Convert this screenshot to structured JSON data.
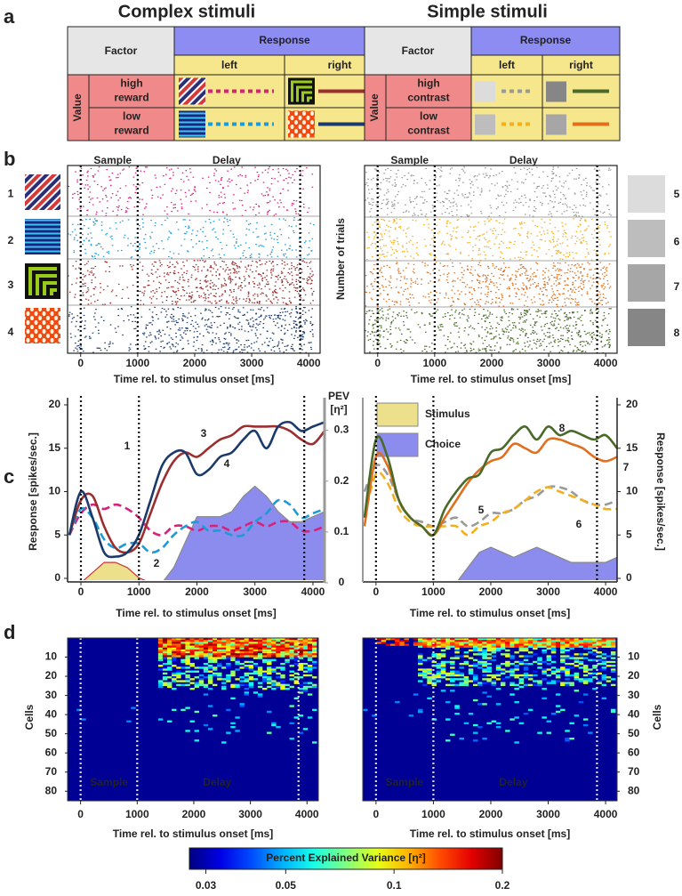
{
  "figure": {
    "panel_labels": [
      "a",
      "b",
      "c",
      "d"
    ],
    "column_titles": [
      "Complex stimuli",
      "Simple stimuli"
    ]
  },
  "tables": [
    {
      "factor": "Factor",
      "response": "Response",
      "left": "left",
      "right": "right",
      "value": "Value",
      "rows": [
        [
          "high",
          "reward"
        ],
        [
          "low",
          "reward"
        ]
      ]
    },
    {
      "factor": "Factor",
      "response": "Response",
      "left": "left",
      "right": "right",
      "value": "Value",
      "rows": [
        [
          "high",
          "contrast"
        ],
        [
          "low",
          "contrast"
        ]
      ]
    }
  ],
  "raster": {
    "sample": "Sample",
    "delay": "Delay",
    "ylabel": "Number of trials",
    "conditions": [
      [
        "1",
        "2",
        "3",
        "4"
      ],
      [
        "5",
        "6",
        "7",
        "8"
      ]
    ]
  },
  "time_axis": {
    "xlim": [
      -230,
      4200
    ],
    "xticks": [
      0,
      1000,
      2000,
      3000,
      4000
    ],
    "xlabel": "Time rel. to stimulus onset [ms]",
    "events": [
      0,
      1000,
      3850
    ]
  },
  "chart_data": [
    {
      "type": "line",
      "ylabel": "Response [spikes/sec.]",
      "y2label": "PEV",
      "y2unit": "[η²]",
      "xlabel": "Time rel. to stimulus onset [ms]",
      "x": [
        -200,
        0,
        200,
        400,
        600,
        800,
        1000,
        1200,
        1400,
        1600,
        1800,
        2000,
        2200,
        2400,
        2600,
        2800,
        3000,
        3200,
        3400,
        3600,
        3800,
        4000,
        4200
      ],
      "xlim": [
        -230,
        4200
      ],
      "xticks": [
        0,
        1000,
        2000,
        3000,
        4000
      ],
      "ylim": [
        0,
        20
      ],
      "yticks": [
        0,
        5,
        10,
        15,
        20
      ],
      "y2lim": [
        0,
        0.35
      ],
      "y2ticks": [
        0,
        0.1,
        0.2,
        0.3
      ],
      "yaxis_side": "left",
      "series": [
        {
          "name": "Stimulus",
          "color": "#ede08c",
          "kind": "area",
          "axis": "y2",
          "values": [
            0,
            0,
            0.02,
            0.04,
            0.04,
            0.03,
            0.01,
            0,
            0,
            0,
            0,
            0,
            0,
            0,
            0,
            0,
            0,
            0,
            0,
            0,
            0,
            0,
            0
          ]
        },
        {
          "name": "Choice",
          "color": "#8c8cee",
          "kind": "area",
          "axis": "y2",
          "values": [
            0,
            0,
            0,
            0,
            0,
            0,
            0,
            0,
            0,
            0.03,
            0.08,
            0.13,
            0.13,
            0.13,
            0.14,
            0.17,
            0.19,
            0.17,
            0.14,
            0.12,
            0.12,
            0.13,
            0.14
          ]
        },
        {
          "name": "1",
          "color": "#d6237a",
          "kind": "line",
          "dashed": true,
          "values": [
            5,
            7.5,
            8.5,
            8,
            8.5,
            8,
            7,
            5.5,
            5,
            6,
            6,
            5.5,
            6,
            6,
            5.5,
            6,
            6.5,
            6,
            6.5,
            6.5,
            5.5,
            5.5,
            6
          ]
        },
        {
          "name": "2",
          "color": "#1e9ad6",
          "kind": "line",
          "dashed": true,
          "values": [
            5,
            8,
            7,
            4.5,
            3.5,
            4,
            4,
            3,
            3.5,
            5,
            6,
            6.5,
            5.5,
            5.5,
            5,
            5,
            6.5,
            7.5,
            9,
            8.5,
            7,
            7.5,
            8
          ]
        },
        {
          "name": "3",
          "color": "#9b2f2f",
          "kind": "line",
          "dashed": false,
          "values": [
            5,
            9,
            9.5,
            6,
            3.5,
            3,
            4,
            7.5,
            11,
            13.5,
            14.5,
            14,
            15,
            16,
            16.5,
            17.5,
            17.5,
            17.5,
            17.5,
            17,
            16,
            15.5,
            17
          ]
        },
        {
          "name": "4",
          "color": "#1b3a6b",
          "kind": "line",
          "dashed": false,
          "values": [
            5,
            10,
            7,
            3,
            2.5,
            3,
            5,
            9,
            13,
            14.5,
            14.5,
            12,
            12.5,
            14,
            14.5,
            16,
            17,
            15,
            17.5,
            18,
            17,
            17.5,
            18
          ]
        }
      ]
    },
    {
      "type": "line",
      "ylabel": "Response [spikes/sec.]",
      "xlabel": "Time rel. to stimulus onset [ms]",
      "x": [
        -200,
        0,
        200,
        400,
        600,
        800,
        1000,
        1200,
        1400,
        1600,
        1800,
        2000,
        2200,
        2400,
        2600,
        2800,
        3000,
        3200,
        3400,
        3600,
        3800,
        4000,
        4200
      ],
      "xlim": [
        -230,
        4200
      ],
      "xticks": [
        0,
        1000,
        2000,
        3000,
        4000
      ],
      "ylim": [
        0,
        20
      ],
      "yticks": [
        0,
        5,
        10,
        15,
        20
      ],
      "y2lim": [
        0,
        0.35
      ],
      "yaxis_side": "right",
      "series": [
        {
          "name": "Choice",
          "color": "#8c8cee",
          "kind": "area",
          "axis": "y2",
          "values": [
            0,
            0,
            0,
            0,
            0,
            0,
            0,
            0,
            0,
            0.03,
            0.06,
            0.07,
            0.06,
            0.05,
            0.06,
            0.07,
            0.06,
            0.05,
            0.04,
            0.04,
            0.04,
            0.04,
            0.05
          ]
        },
        {
          "name": "5",
          "color": "#999999",
          "kind": "line",
          "dashed": true,
          "values": [
            10,
            13,
            12,
            9,
            7,
            6.5,
            6,
            6.5,
            7,
            6,
            6.5,
            7.5,
            7.5,
            8,
            9,
            9.5,
            10.5,
            10.5,
            10,
            9,
            8.5,
            8.5,
            9
          ]
        },
        {
          "name": "6",
          "color": "#f2b01e",
          "kind": "line",
          "dashed": true,
          "values": [
            7,
            12,
            11,
            8,
            6.5,
            6,
            6,
            6,
            6,
            5,
            6,
            6.5,
            7.5,
            8,
            9,
            10,
            10.5,
            10,
            9.5,
            9,
            8.5,
            8,
            8
          ]
        },
        {
          "name": "7",
          "color": "#e0701e",
          "kind": "line",
          "dashed": false,
          "values": [
            6,
            14,
            13,
            9,
            7,
            6,
            5,
            7,
            9,
            11,
            12.5,
            13.5,
            14,
            15.5,
            15,
            14.5,
            16,
            16,
            15.5,
            15,
            14,
            13.5,
            14
          ]
        },
        {
          "name": "8",
          "color": "#4a6a2a",
          "kind": "line",
          "dashed": false,
          "values": [
            7,
            16,
            14,
            9,
            7,
            6,
            5,
            8,
            10,
            11.5,
            12,
            14.5,
            15,
            16.5,
            17.5,
            16,
            17.5,
            16.5,
            17,
            16.5,
            16,
            16.5,
            15
          ]
        }
      ]
    }
  ],
  "panel_d": {
    "ylabel": "Cells",
    "ylim": [
      0,
      85
    ],
    "yticks": [
      10,
      20,
      30,
      40,
      50,
      60,
      70,
      80
    ],
    "sample": "Sample",
    "delay": "Delay"
  },
  "colorbar": {
    "title": "Percent Explained Variance [η²]",
    "lim": [
      0.027,
      0.2
    ],
    "ticks": [
      0.03,
      0.05,
      0.1,
      0.2
    ],
    "log": true
  }
}
